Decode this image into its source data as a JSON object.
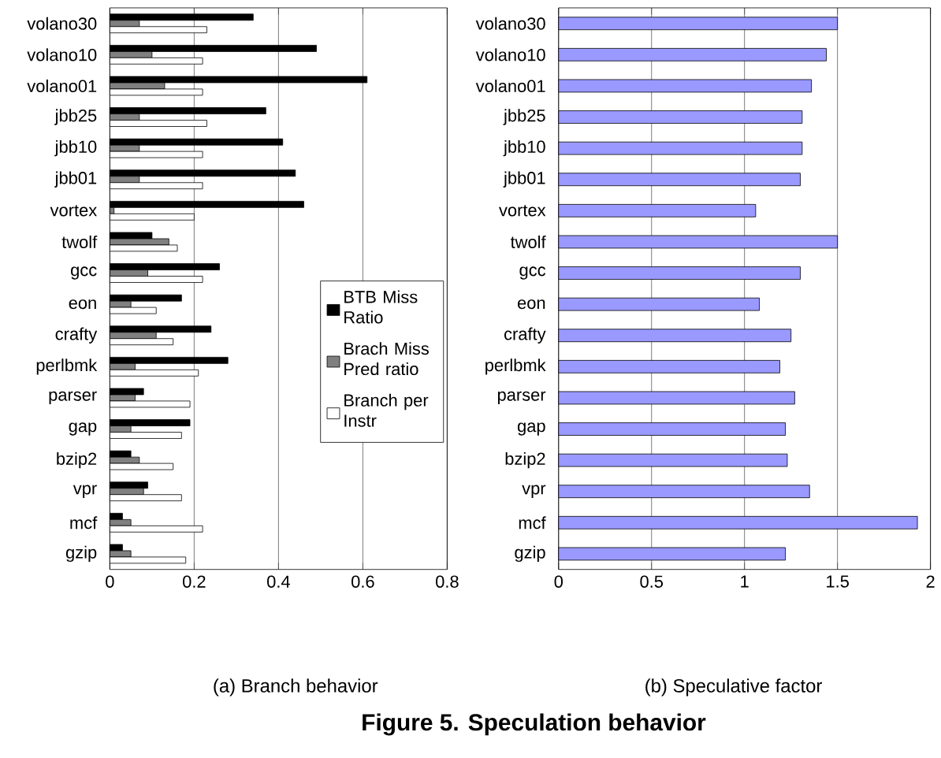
{
  "chart_data": [
    {
      "type": "bar",
      "orientation": "horizontal",
      "title": "(a) Branch behavior",
      "categories": [
        "volano30",
        "volano10",
        "volano01",
        "jbb25",
        "jbb10",
        "jbb01",
        "vortex",
        "twolf",
        "gcc",
        "eon",
        "crafty",
        "perlbmk",
        "parser",
        "gap",
        "bzip2",
        "vpr",
        "mcf",
        "gzip"
      ],
      "series": [
        {
          "name": "BTB Miss Ratio",
          "color": "#000000",
          "values": [
            0.34,
            0.49,
            0.61,
            0.37,
            0.41,
            0.44,
            0.46,
            0.1,
            0.26,
            0.17,
            0.24,
            0.28,
            0.08,
            0.19,
            0.05,
            0.09,
            0.03,
            0.03
          ]
        },
        {
          "name": "Brach Miss Pred ratio",
          "color": "#808080",
          "values": [
            0.07,
            0.1,
            0.13,
            0.07,
            0.07,
            0.07,
            0.01,
            0.14,
            0.09,
            0.05,
            0.11,
            0.06,
            0.06,
            0.05,
            0.07,
            0.08,
            0.05,
            0.05
          ]
        },
        {
          "name": "Branch per Instr",
          "color": "#ffffff",
          "values": [
            0.23,
            0.22,
            0.22,
            0.23,
            0.22,
            0.22,
            0.2,
            0.16,
            0.22,
            0.11,
            0.15,
            0.21,
            0.19,
            0.17,
            0.15,
            0.17,
            0.22,
            0.18
          ]
        }
      ],
      "xlim": [
        0,
        0.8
      ],
      "xticks": [
        0,
        0.2,
        0.4,
        0.6,
        0.8
      ],
      "grid": "x",
      "legend": "right",
      "annotations": [
        "Figure 5. Speculation behavior"
      ]
    },
    {
      "type": "bar",
      "orientation": "horizontal",
      "title": "(b) Speculative factor",
      "categories": [
        "volano30",
        "volano10",
        "volano01",
        "jbb25",
        "jbb10",
        "jbb01",
        "vortex",
        "twolf",
        "gcc",
        "eon",
        "crafty",
        "perlbmk",
        "parser",
        "gap",
        "bzip2",
        "vpr",
        "mcf",
        "gzip"
      ],
      "color": "#9999ff",
      "values": [
        1.5,
        1.44,
        1.36,
        1.31,
        1.31,
        1.3,
        1.06,
        1.5,
        1.3,
        1.08,
        1.25,
        1.19,
        1.27,
        1.22,
        1.23,
        1.35,
        1.93,
        1.22
      ],
      "xlim": [
        0,
        2
      ],
      "xticks": [
        0,
        0.5,
        1,
        1.5,
        2
      ],
      "grid": "x"
    }
  ]
}
